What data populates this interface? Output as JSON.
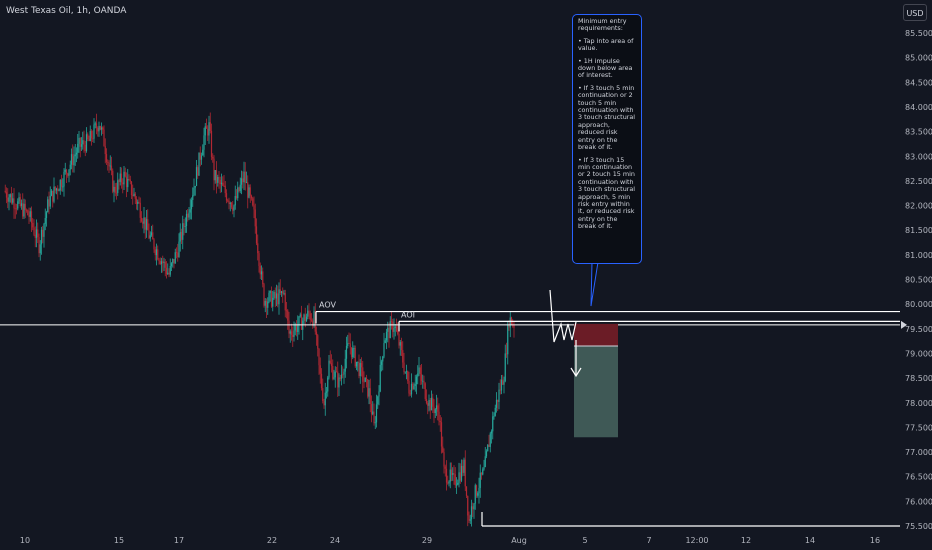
{
  "header": {
    "symbol_title": "West Texas Oil, 1h, OANDA",
    "currency_button": "USD"
  },
  "annotation_box": {
    "paragraphs": [
      "Minimum entry requirements:",
      "• Tap into area of value.",
      "• 1H impulse down below area of interest.",
      "• If 3 touch 5 min continuation or 2 touch 5 min continuation with 3 touch structural approach, reduced risk entry on the break of it.",
      "• If 3 touch 15 min continuation or 2 touch 15 min continuation with 3 touch structural approach, 5 min risk entry within it, or reduced risk entry on the break of it."
    ]
  },
  "colors": {
    "background": "#131722",
    "up_candle": "#26a69a",
    "down_candle": "#b22833",
    "text": "#b2b5be",
    "line": "#ffffff",
    "stop_zone": "#6b1c26",
    "target_zone": "#3f5956",
    "callout_border": "#2962ff"
  },
  "chart_data": {
    "type": "candlestick",
    "instrument": "West Texas Oil",
    "timeframe": "1h",
    "y_axis": {
      "ticks": [
        "85.500",
        "85.000",
        "84.500",
        "84.000",
        "83.500",
        "83.000",
        "82.500",
        "82.000",
        "81.500",
        "81.000",
        "80.500",
        "80.000",
        "79.500",
        "79.000",
        "78.500",
        "78.000",
        "77.500",
        "77.000",
        "76.500",
        "76.000",
        "75.500"
      ],
      "range": [
        75.2,
        86.0
      ]
    },
    "x_axis": {
      "ticks": [
        "10",
        "15",
        "17",
        "22",
        "24",
        "29",
        "Aug",
        "5",
        "7",
        "12:00",
        "12",
        "14",
        "16"
      ]
    },
    "price_path": [
      {
        "t": 0,
        "p": 82.3
      },
      {
        "t": 3,
        "p": 82.0
      },
      {
        "t": 5,
        "p": 81.8
      },
      {
        "t": 7,
        "p": 81.2
      },
      {
        "t": 9,
        "p": 82.1
      },
      {
        "t": 12,
        "p": 82.6
      },
      {
        "t": 15,
        "p": 83.2
      },
      {
        "t": 17,
        "p": 83.3
      },
      {
        "t": 19,
        "p": 83.7
      },
      {
        "t": 20,
        "p": 83.3
      },
      {
        "t": 22,
        "p": 82.3
      },
      {
        "t": 24,
        "p": 82.6
      },
      {
        "t": 27,
        "p": 82.0
      },
      {
        "t": 29,
        "p": 81.4
      },
      {
        "t": 31,
        "p": 81.0
      },
      {
        "t": 33,
        "p": 80.6
      },
      {
        "t": 35,
        "p": 81.2
      },
      {
        "t": 38,
        "p": 82.4
      },
      {
        "t": 40,
        "p": 83.4
      },
      {
        "t": 41,
        "p": 83.6
      },
      {
        "t": 42,
        "p": 82.6
      },
      {
        "t": 44,
        "p": 82.3
      },
      {
        "t": 46,
        "p": 82.0
      },
      {
        "t": 48,
        "p": 82.6
      },
      {
        "t": 50,
        "p": 81.8
      },
      {
        "t": 52,
        "p": 80.1
      },
      {
        "t": 54,
        "p": 80.1
      },
      {
        "t": 56,
        "p": 80.2
      },
      {
        "t": 57,
        "p": 79.4
      },
      {
        "t": 59,
        "p": 79.6
      },
      {
        "t": 61,
        "p": 79.8
      },
      {
        "t": 62,
        "p": 79.7
      },
      {
        "t": 63,
        "p": 78.7
      },
      {
        "t": 64,
        "p": 78.0
      },
      {
        "t": 65,
        "p": 78.8
      },
      {
        "t": 67,
        "p": 78.4
      },
      {
        "t": 69,
        "p": 79.2
      },
      {
        "t": 71,
        "p": 78.7
      },
      {
        "t": 73,
        "p": 78.2
      },
      {
        "t": 74,
        "p": 77.5
      },
      {
        "t": 76,
        "p": 79.3
      },
      {
        "t": 78,
        "p": 79.6
      },
      {
        "t": 79,
        "p": 79.2
      },
      {
        "t": 81,
        "p": 78.3
      },
      {
        "t": 83,
        "p": 78.6
      },
      {
        "t": 85,
        "p": 78.0
      },
      {
        "t": 87,
        "p": 77.8
      },
      {
        "t": 88,
        "p": 76.6
      },
      {
        "t": 90,
        "p": 76.4
      },
      {
        "t": 92,
        "p": 76.7
      },
      {
        "t": 93,
        "p": 75.6
      },
      {
        "t": 94,
        "p": 76.1
      },
      {
        "t": 96,
        "p": 76.6
      },
      {
        "t": 98,
        "p": 77.8
      },
      {
        "t": 100,
        "p": 78.6
      },
      {
        "t": 101,
        "p": 79.7
      },
      {
        "t": 102,
        "p": 79.6
      }
    ],
    "levels": [
      {
        "label": "AOV",
        "price": 79.85
      },
      {
        "label": "AOI",
        "price": 79.65
      },
      {
        "label": "",
        "price": 75.5
      }
    ],
    "position": {
      "entry": 79.15,
      "stop": 79.6,
      "target": 77.3
    },
    "current_price": 79.6
  }
}
